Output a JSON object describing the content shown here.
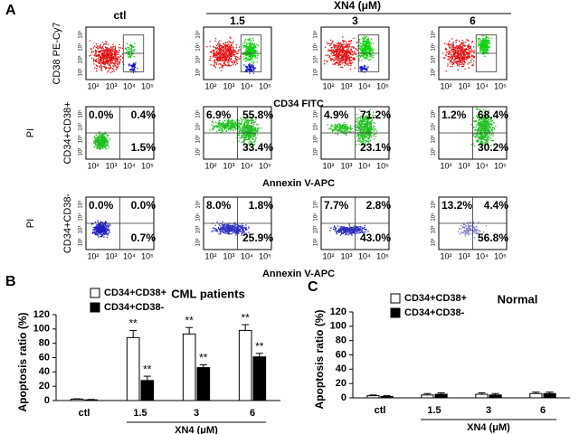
{
  "panel_labels": [
    "A",
    "B",
    "C"
  ],
  "flow": {
    "group_label": "XN4 (μM)",
    "columns": [
      "ctl",
      "1.5",
      "3",
      "6"
    ],
    "axis_ticks": [
      "10²",
      "10³",
      "10⁴",
      "10⁵"
    ],
    "rows": [
      {
        "y_label": "CD38 PE-Cy7",
        "x_label": "CD34 FITC"
      },
      {
        "side_label": "PI",
        "y_label": "CD34+CD38+",
        "x_label": "Annexin V-APC",
        "quadrants": [
          [
            "0.0%",
            "0.4%",
            "1.5%"
          ],
          [
            "6.9%",
            "55.8%",
            "33.4%"
          ],
          [
            "4.9%",
            "71.2%",
            "23.1%"
          ],
          [
            "1.2%",
            "68.4%",
            "30.2%"
          ]
        ]
      },
      {
        "side_label": "PI",
        "y_label": "CD34+CD38-",
        "x_label": "Annexin V-APC",
        "quadrants": [
          [
            "0.0%",
            "0.0%",
            "0.7%"
          ],
          [
            "8.0%",
            "1.8%",
            "25.9%"
          ],
          [
            "7.7%",
            "2.8%",
            "43.0%"
          ],
          [
            "13.2%",
            "4.4%",
            "56.8%"
          ]
        ]
      }
    ]
  },
  "chart_data": [
    {
      "type": "bar",
      "title": "CML patients",
      "y_label": "Apoptosis ratio (%)",
      "x_label": "XN4 (μM)",
      "categories": [
        "ctl",
        "1.5",
        "3",
        "6"
      ],
      "ylim": [
        0,
        120
      ],
      "yticks": [
        0,
        20,
        40,
        60,
        80,
        100,
        120
      ],
      "series": [
        {
          "name": "CD34+CD38+",
          "color": "#ffffff",
          "values": [
            2,
            88,
            93,
            98
          ],
          "errors": [
            0.5,
            10,
            9,
            8
          ],
          "significance": [
            null,
            "**",
            "**",
            "**"
          ]
        },
        {
          "name": "CD34+CD38-",
          "color": "#000000",
          "values": [
            1,
            28,
            46,
            61
          ],
          "errors": [
            0.5,
            6,
            4,
            5
          ],
          "significance": [
            null,
            "**",
            "**",
            "**"
          ]
        }
      ]
    },
    {
      "type": "bar",
      "title": "Normal",
      "y_label": "Apoptosis ratio (%)",
      "x_label": "XN4 (μM)",
      "categories": [
        "ctl",
        "1.5",
        "3",
        "6"
      ],
      "ylim": [
        0,
        120
      ],
      "yticks": [
        0,
        20,
        40,
        60,
        80,
        100,
        120
      ],
      "series": [
        {
          "name": "CD34+CD38+",
          "color": "#ffffff",
          "values": [
            3,
            4,
            5,
            6
          ],
          "errors": [
            1,
            2,
            2,
            2
          ]
        },
        {
          "name": "CD34+CD38-",
          "color": "#000000",
          "values": [
            2,
            5,
            4,
            6
          ],
          "errors": [
            1,
            2,
            2,
            2
          ]
        }
      ]
    }
  ]
}
